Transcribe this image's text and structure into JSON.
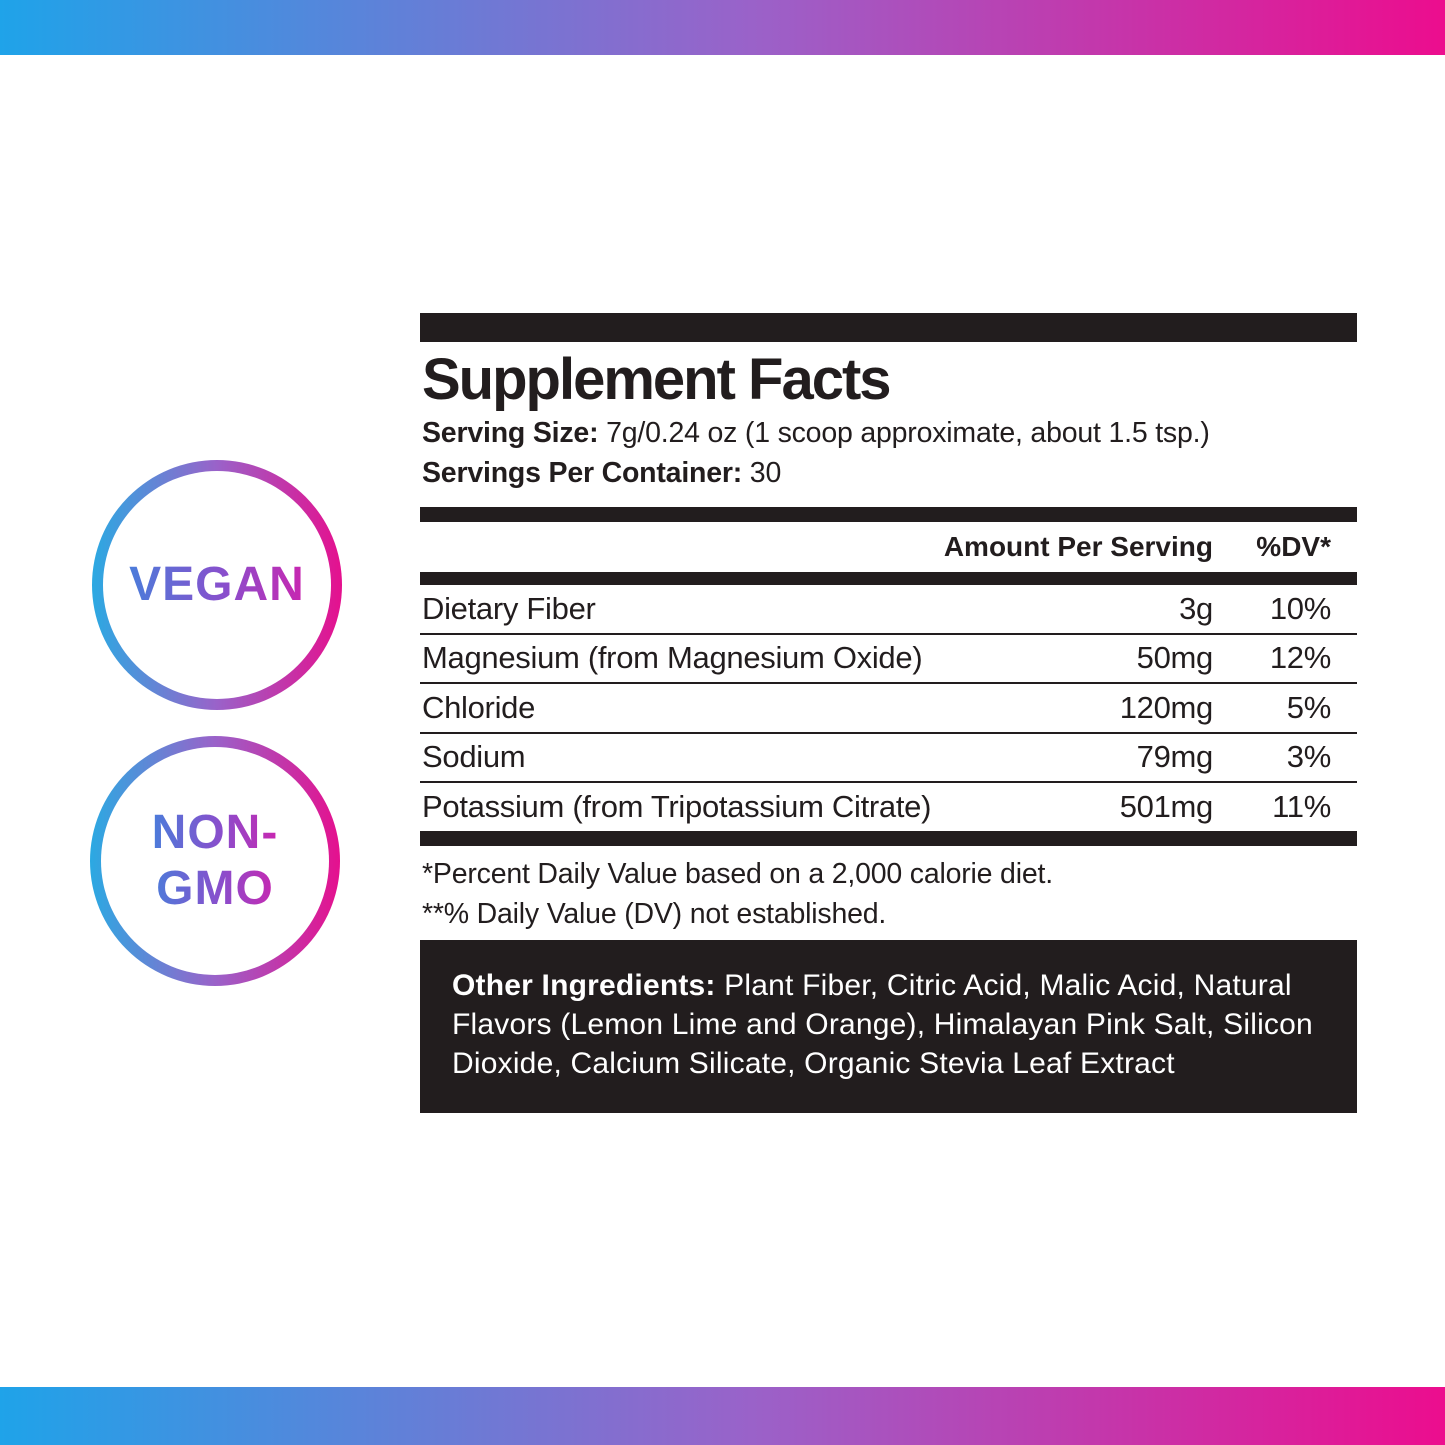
{
  "colors": {
    "accent_gradient_left": "#1FA3E9",
    "accent_gradient_right": "#EC0D8E",
    "badge_text_gradient_left": "#4B7CDA",
    "badge_text_gradient_right": "#C926B0",
    "label_black": "#221D1E",
    "label_text_white": "#FFFFFF"
  },
  "badges": {
    "vegan": {
      "text": "VEGAN"
    },
    "non_gmo": {
      "line1": "NON-",
      "line2": "GMO"
    }
  },
  "panel": {
    "title": "Supplement Facts",
    "serving_size": {
      "label": "Serving Size:",
      "value": " 7g/0.24 oz (1 scoop approximate, about 1.5 tsp.)"
    },
    "servings_per_container": {
      "label": "Servings Per Container:",
      "value": " 30"
    },
    "columns": {
      "amount": "Amount Per Serving",
      "dv": "%DV*"
    },
    "rows": [
      {
        "name": "Dietary Fiber",
        "amount": "3g",
        "dv": "10%"
      },
      {
        "name": "Magnesium (from Magnesium Oxide)",
        "amount": "50mg",
        "dv": "12%"
      },
      {
        "name": "Chloride",
        "amount": "120mg",
        "dv": "5%"
      },
      {
        "name": "Sodium",
        "amount": "79mg",
        "dv": "3%"
      },
      {
        "name": "Potassium (from Tripotassium Citrate)",
        "amount": "501mg",
        "dv": "11%"
      }
    ],
    "footnotes": {
      "line1": "*Percent Daily Value based on a 2,000 calorie diet.",
      "line2": "**% Daily Value (DV) not established."
    },
    "other_ingredients": {
      "label": "Other Ingredients:",
      "value": " Plant Fiber, Citric Acid, Malic Acid, Natural Flavors (Lemon Lime and Orange), Himalayan Pink Salt, Silicon Dioxide, Calcium Silicate, Organic Stevia Leaf Extract"
    }
  }
}
